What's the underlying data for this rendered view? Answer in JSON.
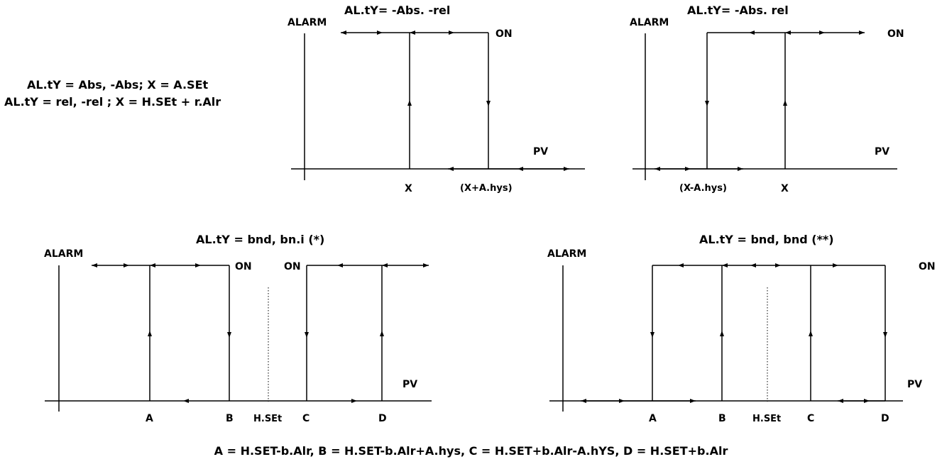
{
  "legend": {
    "line1": "AL.tY = Abs, -Abs; X = A.SEt",
    "line2": "AL.tY = rel, -rel ; X = H.SEt + r.Alr"
  },
  "diagrams": {
    "d1": {
      "title": "AL.tY= -Abs. -rel",
      "alarm": "ALARM",
      "on": "ON",
      "pv": "PV",
      "x1": "X",
      "x2": "(X+A.hys)"
    },
    "d2": {
      "title": "AL.tY= -Abs. rel",
      "alarm": "ALARM",
      "on": "ON",
      "pv": "PV",
      "x1": "(X-A.hys)",
      "x2": "X"
    },
    "d3": {
      "title": "AL.tY = bnd, bn.i (*)",
      "alarm": "ALARM",
      "on1": "ON",
      "on2": "ON",
      "pv": "PV",
      "a": "A",
      "b": "B",
      "hset": "H.SEt",
      "c": "C",
      "d": "D"
    },
    "d4": {
      "title": "AL.tY = bnd, bnd (**)",
      "alarm": "ALARM",
      "on": "ON",
      "pv": "PV",
      "a": "A",
      "b": "B",
      "hset": "H.SEt",
      "c": "C",
      "d": "D"
    }
  },
  "formula": "A = H.SET-b.Alr,  B = H.SET-b.Alr+A.hys,  C = H.SET+b.Alr-A.hYS,  D = H.SET+b.Alr"
}
